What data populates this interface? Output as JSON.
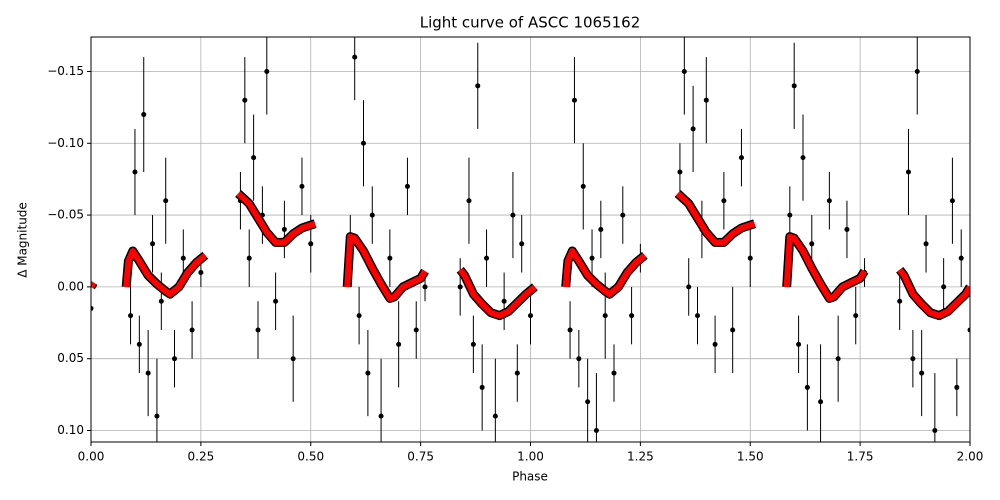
{
  "chart_data": {
    "type": "errorbar",
    "title": "Light curve of ASCC 1065162",
    "x_label": "Phase",
    "y_label": "Δ Magnitude",
    "xlim": [
      0,
      2
    ],
    "ylim": [
      0.108,
      -0.174
    ],
    "xticks": [
      {
        "value": 0,
        "label": "0.00"
      },
      0.25,
      {
        "value": 0.5,
        "label": "0.50"
      },
      0.75,
      {
        "value": 1,
        "label": "1.00"
      },
      1.25,
      {
        "value": 1.5,
        "label": "1.50"
      },
      1.75,
      {
        "value": 2,
        "label": "2.00"
      }
    ],
    "yticks": [
      {
        "value": -0.15,
        "label": "−0.15"
      },
      {
        "value": -0.1,
        "label": "−0.10"
      },
      {
        "value": -0.05,
        "label": "−0.05"
      },
      {
        "value": 0,
        "label": "0.00"
      },
      0.05,
      {
        "value": 0.1,
        "label": "0.10"
      }
    ],
    "grid": true,
    "series": [
      {
        "mode": "errorbar",
        "color": "#000000",
        "x": [
          0.0,
          0.09,
          0.1,
          0.11,
          0.12,
          0.13,
          0.14,
          0.15,
          0.16,
          0.17,
          0.19,
          0.21,
          0.23,
          0.25,
          0.34,
          0.35,
          0.36,
          0.37,
          0.38,
          0.39,
          0.4,
          0.42,
          0.44,
          0.46,
          0.48,
          0.5,
          0.59,
          0.6,
          0.61,
          0.62,
          0.63,
          0.64,
          0.66,
          0.68,
          0.7,
          0.72,
          0.74,
          0.76,
          0.84,
          0.86,
          0.87,
          0.88,
          0.89,
          0.9,
          0.92,
          0.94,
          0.96,
          0.97,
          0.98,
          1.0,
          1.09,
          1.1,
          1.11,
          1.12,
          1.13,
          1.14,
          1.15,
          1.16,
          1.17,
          1.19,
          1.21,
          1.23,
          1.25,
          1.34,
          1.35,
          1.36,
          1.37,
          1.38,
          1.39,
          1.4,
          1.42,
          1.44,
          1.46,
          1.48,
          1.5,
          1.59,
          1.6,
          1.61,
          1.62,
          1.63,
          1.64,
          1.66,
          1.68,
          1.7,
          1.72,
          1.74,
          1.76,
          1.84,
          1.86,
          1.87,
          1.88,
          1.89,
          1.9,
          1.92,
          1.94,
          1.96,
          1.97,
          1.98,
          2.0
        ],
        "values": [
          0.015,
          0.02,
          -0.08,
          0.04,
          -0.12,
          0.06,
          -0.03,
          0.09,
          0.01,
          -0.06,
          0.05,
          -0.02,
          0.03,
          -0.01,
          -0.06,
          -0.13,
          -0.02,
          -0.09,
          0.03,
          -0.05,
          -0.15,
          0.01,
          -0.04,
          0.05,
          -0.07,
          -0.03,
          -0.03,
          -0.16,
          0.02,
          -0.1,
          0.06,
          -0.05,
          0.09,
          -0.02,
          0.04,
          -0.07,
          0.03,
          0.0,
          0.0,
          -0.06,
          0.04,
          -0.14,
          0.07,
          -0.02,
          0.09,
          0.01,
          -0.05,
          0.06,
          -0.03,
          0.02,
          0.03,
          -0.13,
          0.05,
          -0.07,
          0.08,
          -0.02,
          0.1,
          -0.04,
          0.02,
          0.06,
          -0.05,
          0.02,
          -0.02,
          -0.08,
          -0.15,
          0.0,
          -0.11,
          0.02,
          -0.04,
          -0.13,
          0.04,
          -0.06,
          0.03,
          -0.09,
          -0.02,
          -0.05,
          -0.14,
          0.04,
          -0.09,
          0.07,
          -0.03,
          0.08,
          -0.06,
          0.05,
          -0.04,
          0.02,
          -0.01,
          0.01,
          -0.08,
          0.05,
          -0.15,
          0.06,
          -0.03,
          0.1,
          0.0,
          -0.06,
          0.07,
          -0.02,
          0.03
        ],
        "errors": [
          0.01,
          0.02,
          0.03,
          0.02,
          0.04,
          0.03,
          0.02,
          0.04,
          0.02,
          0.03,
          0.02,
          0.02,
          0.02,
          0.01,
          0.02,
          0.03,
          0.02,
          0.03,
          0.02,
          0.02,
          0.03,
          0.02,
          0.02,
          0.03,
          0.02,
          0.02,
          0.02,
          0.03,
          0.02,
          0.03,
          0.03,
          0.02,
          0.04,
          0.02,
          0.03,
          0.02,
          0.02,
          0.01,
          0.02,
          0.03,
          0.02,
          0.03,
          0.03,
          0.02,
          0.04,
          0.02,
          0.03,
          0.02,
          0.02,
          0.02,
          0.02,
          0.03,
          0.02,
          0.03,
          0.03,
          0.02,
          0.04,
          0.02,
          0.03,
          0.02,
          0.02,
          0.02,
          0.01,
          0.02,
          0.03,
          0.02,
          0.03,
          0.02,
          0.02,
          0.03,
          0.02,
          0.02,
          0.03,
          0.02,
          0.02,
          0.02,
          0.03,
          0.02,
          0.03,
          0.03,
          0.02,
          0.04,
          0.02,
          0.03,
          0.02,
          0.02,
          0.01,
          0.02,
          0.03,
          0.02,
          0.03,
          0.03,
          0.02,
          0.04,
          0.02,
          0.03,
          0.02,
          0.02,
          0.02
        ]
      },
      {
        "mode": "line",
        "color": "#ff0000",
        "x": [
          0.0,
          0.006,
          0.04,
          0.08,
          0.085,
          0.095,
          0.11,
          0.13,
          0.15,
          0.17,
          0.18,
          0.2,
          0.22,
          0.24,
          0.26,
          0.3,
          0.335,
          0.36,
          0.38,
          0.4,
          0.42,
          0.44,
          0.46,
          0.48,
          0.51,
          0.55,
          0.583,
          0.59,
          0.6,
          0.62,
          0.64,
          0.66,
          0.68,
          0.69,
          0.71,
          0.73,
          0.75,
          0.76,
          0.8,
          0.84,
          0.85,
          0.87,
          0.89,
          0.91,
          0.93,
          0.95,
          0.97,
          0.99,
          1.01,
          1.04,
          1.08,
          1.085,
          1.095,
          1.11,
          1.13,
          1.15,
          1.17,
          1.18,
          1.2,
          1.22,
          1.24,
          1.26,
          1.3,
          1.335,
          1.36,
          1.38,
          1.4,
          1.42,
          1.44,
          1.46,
          1.48,
          1.51,
          1.55,
          1.583,
          1.59,
          1.6,
          1.62,
          1.64,
          1.66,
          1.68,
          1.69,
          1.71,
          1.73,
          1.75,
          1.76,
          1.8,
          1.84,
          1.85,
          1.87,
          1.89,
          1.91,
          1.93,
          1.95,
          1.97,
          1.99,
          2.0
        ],
        "values": [
          0.0,
          -0.003,
          null,
          0.0,
          -0.018,
          -0.025,
          -0.018,
          -0.008,
          -0.002,
          0.003,
          0.005,
          0.0,
          -0.01,
          -0.017,
          -0.022,
          null,
          -0.065,
          -0.058,
          -0.048,
          -0.038,
          -0.031,
          -0.031,
          -0.037,
          -0.041,
          -0.044,
          null,
          0.0,
          -0.035,
          -0.034,
          -0.025,
          -0.013,
          -0.002,
          0.008,
          0.007,
          0.0,
          -0.003,
          -0.006,
          -0.011,
          null,
          -0.012,
          -0.008,
          0.005,
          0.012,
          0.018,
          0.02,
          0.017,
          0.011,
          0.005,
          0.0,
          null,
          0.0,
          -0.018,
          -0.025,
          -0.018,
          -0.008,
          -0.002,
          0.003,
          0.005,
          0.0,
          -0.01,
          -0.017,
          -0.022,
          null,
          -0.065,
          -0.058,
          -0.048,
          -0.038,
          -0.031,
          -0.031,
          -0.037,
          -0.041,
          -0.044,
          null,
          0.0,
          -0.035,
          -0.034,
          -0.025,
          -0.013,
          -0.002,
          0.008,
          0.007,
          0.0,
          -0.003,
          -0.006,
          -0.011,
          null,
          -0.012,
          -0.008,
          0.005,
          0.012,
          0.018,
          0.02,
          0.017,
          0.011,
          0.005,
          0.0
        ]
      }
    ]
  }
}
